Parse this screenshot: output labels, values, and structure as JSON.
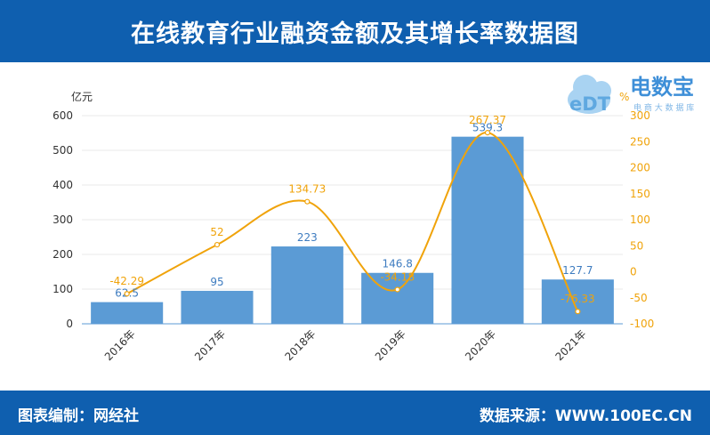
{
  "header": {
    "title": "在线教育行业融资金额及其增长率数据图"
  },
  "footer": {
    "editor": "图表编制：网经社",
    "source": "数据来源：WWW.100EC.CN"
  },
  "logo": {
    "brand": "电数宝",
    "tagline": "电 商 大 数 据 库",
    "mark": "eDT"
  },
  "colors": {
    "header_bg": "#0f5faf",
    "bar": "#5b9bd5",
    "line": "#f0a30a"
  },
  "chart_data": {
    "type": "bar",
    "categories": [
      "2016年",
      "2017年",
      "2018年",
      "2019年",
      "2020年",
      "2021年"
    ],
    "series": [
      {
        "values": [
          62.5,
          95,
          223,
          146.8,
          539.3,
          127.7
        ]
      },
      {
        "type": "line",
        "axis": "right",
        "values": [
          -42.29,
          52,
          134.73,
          -34.18,
          267.37,
          -76.33
        ]
      }
    ],
    "ylabel": "亿元",
    "y2label": "%",
    "ylim": [
      0,
      600
    ],
    "y2lim": [
      -100,
      300
    ],
    "yticks": [
      0,
      100,
      200,
      300,
      400,
      500,
      600
    ],
    "y2ticks": [
      -100,
      -50,
      0,
      50,
      100,
      150,
      200,
      250,
      300
    ],
    "grid": true
  }
}
